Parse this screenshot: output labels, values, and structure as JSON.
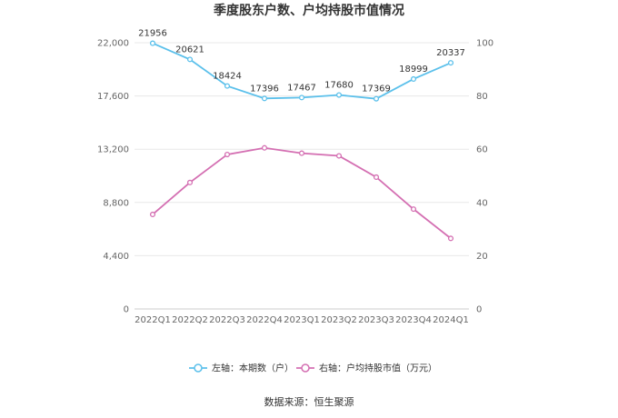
{
  "chart_data": {
    "type": "line",
    "title": "季度股东户数、户均持股市值情况",
    "categories": [
      "2022Q1",
      "2022Q2",
      "2022Q3",
      "2022Q4",
      "2023Q1",
      "2023Q2",
      "2023Q3",
      "2023Q4",
      "2024Q1"
    ],
    "series": [
      {
        "name": "左轴：本期数（户）",
        "axis": "left",
        "color": "#5bc0eb",
        "values": [
          21956,
          20621,
          18424,
          17396,
          17467,
          17680,
          17369,
          18999,
          20337
        ],
        "labels": [
          "21956",
          "20621",
          "18424",
          "17396",
          "17467",
          "17680",
          "17369",
          "18999",
          "20337"
        ]
      },
      {
        "name": "右轴：户均持股市值（万元）",
        "axis": "right",
        "color": "#d46fb2",
        "values": [
          35.5,
          47.5,
          58.0,
          60.5,
          58.5,
          57.5,
          49.5,
          37.5,
          26.5
        ]
      }
    ],
    "left_axis": {
      "min": 0,
      "max": 22000,
      "ticks": [
        0,
        4400,
        8800,
        13200,
        17600,
        22000
      ],
      "tick_labels": [
        "0",
        "4,400",
        "8,800",
        "13,200",
        "17,600",
        "22,000"
      ]
    },
    "right_axis": {
      "min": 0,
      "max": 100,
      "ticks": [
        0,
        20,
        40,
        60,
        80,
        100
      ],
      "tick_labels": [
        "0",
        "20",
        "40",
        "60",
        "80",
        "100"
      ]
    },
    "grid": true,
    "legend_position": "bottom"
  },
  "source_text": "数据来源：恒生聚源"
}
